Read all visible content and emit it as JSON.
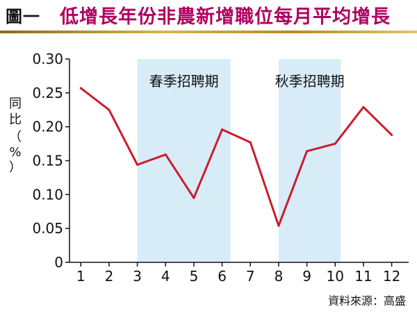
{
  "header": {
    "label": "圖一",
    "title": "低增長年份非農新增職位每月平均增長"
  },
  "source": "資料來源：高盛",
  "colors": {
    "line": "#cc1b2b",
    "band": "#d8ecf8",
    "title": "#b0005f"
  },
  "chart_data": {
    "type": "line",
    "x": [
      1,
      2,
      3,
      4,
      5,
      6,
      7,
      8,
      9,
      10,
      11,
      12
    ],
    "y": [
      0.257,
      0.225,
      0.144,
      0.159,
      0.095,
      0.196,
      0.177,
      0.054,
      0.164,
      0.175,
      0.229,
      0.188
    ],
    "ylabel_chars": [
      "同",
      "比",
      "（",
      "%",
      "）"
    ],
    "xlim": [
      0.6,
      12.6
    ],
    "ylim": [
      0,
      0.3
    ],
    "xticks": [
      "1",
      "2",
      "3",
      "4",
      "5",
      "6",
      "7",
      "8",
      "9",
      "10",
      "11",
      "12"
    ],
    "yticks": [
      "0",
      "0.05",
      "0.10",
      "0.15",
      "0.20",
      "0.25",
      "0.30"
    ],
    "grid": false,
    "bands": [
      {
        "from": 3,
        "to": 6.3,
        "label": "春季招聘期"
      },
      {
        "from": 8,
        "to": 10.2,
        "label": "秋季招聘期"
      }
    ]
  }
}
